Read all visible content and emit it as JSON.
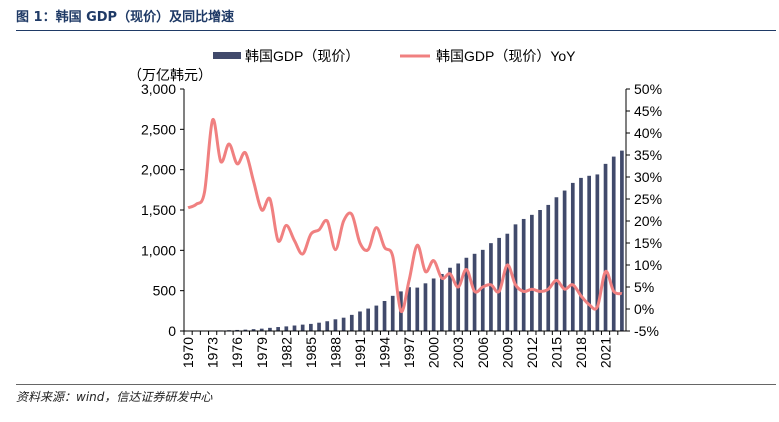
{
  "figure_title": "图 1：韩国 GDP（现价）及同比增速",
  "source": "资料来源：wind，信达证券研发中心",
  "colors": {
    "bar": "#414a6b",
    "line": "#f08080",
    "title": "#1f3a66"
  },
  "chart_data": {
    "type": "bar+line",
    "title": "",
    "ylabel_left": "（万亿韩元）",
    "ylim_left": [
      0,
      3000
    ],
    "yticks_left": [
      "0",
      "500",
      "1,000",
      "1,500",
      "2,000",
      "2,500",
      "3,000"
    ],
    "ylim_right": [
      -5,
      50
    ],
    "yticks_right": [
      "-5%",
      "0%",
      "5%",
      "10%",
      "15%",
      "20%",
      "25%",
      "30%",
      "35%",
      "40%",
      "45%",
      "50%"
    ],
    "x_tick_labels": [
      "1970",
      "1973",
      "1976",
      "1979",
      "1982",
      "1985",
      "1988",
      "1991",
      "1994",
      "1997",
      "2000",
      "2003",
      "2006",
      "2009",
      "2012",
      "2015",
      "2018",
      "2021"
    ],
    "legend": [
      "韩国GDP（现价）",
      "韩国GDP（现价）YoY"
    ],
    "legend_position": "top",
    "years": [
      1970,
      1971,
      1972,
      1973,
      1974,
      1975,
      1976,
      1977,
      1978,
      1979,
      1980,
      1981,
      1982,
      1983,
      1984,
      1985,
      1986,
      1987,
      1988,
      1989,
      1990,
      1991,
      1992,
      1993,
      1994,
      1995,
      1996,
      1997,
      1998,
      1999,
      2000,
      2001,
      2002,
      2003,
      2004,
      2005,
      2006,
      2007,
      2008,
      2009,
      2010,
      2011,
      2012,
      2013,
      2014,
      2015,
      2016,
      2017,
      2018,
      2019,
      2020,
      2021,
      2022,
      2023
    ],
    "series": [
      {
        "name": "韩国GDP（现价）",
        "type": "bar",
        "axis": "left",
        "values": [
          3,
          3,
          4,
          5,
          7,
          10,
          13,
          17,
          23,
          29,
          39,
          49,
          57,
          68,
          79,
          88,
          103,
          121,
          145,
          165,
          200,
          242,
          278,
          315,
          372,
          436,
          491,
          543,
          538,
          591,
          651,
          707,
          784,
          837,
          908,
          957,
          1006,
          1089,
          1154,
          1206,
          1322,
          1389,
          1440,
          1500,
          1563,
          1658,
          1741,
          1836,
          1898,
          1924,
          1941,
          2072,
          2162,
          2236
        ]
      },
      {
        "name": "韩国GDP（现价）YoY",
        "type": "line",
        "axis": "right",
        "values": [
          23.0,
          23.8,
          26.5,
          43.0,
          33.5,
          37.5,
          33.0,
          35.5,
          29.0,
          22.5,
          25.0,
          15.5,
          19.0,
          15.5,
          12.5,
          17.0,
          18.0,
          20.0,
          13.5,
          20.0,
          21.5,
          15.0,
          13.5,
          18.5,
          14.0,
          12.0,
          -0.5,
          6.5,
          14.5,
          8.5,
          11.0,
          7.0,
          8.0,
          5.0,
          9.0,
          4.0,
          5.0,
          5.5,
          4.0,
          10.0,
          5.5,
          4.0,
          4.5,
          4.0,
          4.5,
          6.5,
          4.5,
          5.5,
          3.0,
          1.0,
          0.5,
          8.5,
          4.0,
          3.5
        ]
      }
    ]
  }
}
